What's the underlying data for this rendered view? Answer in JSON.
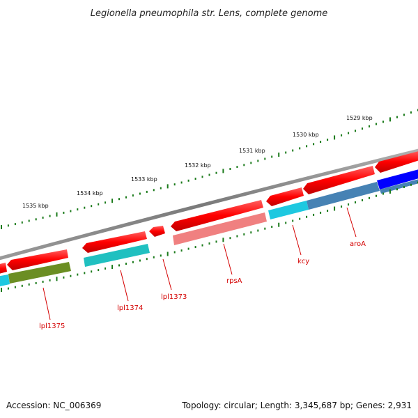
{
  "title": "Legionella pneumophila str. Lens, complete genome",
  "footer": {
    "accession": "Accession: NC_006369",
    "topology": "Topology: circular; Length: 3,345,687 bp; Genes: 2,931"
  },
  "kbp_labels": [
    "1535 kbp",
    "1534 kbp",
    "1533 kbp",
    "1532 kbp",
    "1531 kbp",
    "1530 kbp",
    "1529 kbp"
  ],
  "gene_labels": [
    "lpl1375",
    "lpl1374",
    "lpl1373",
    "rpsA",
    "kcy",
    "aroA"
  ],
  "colors": {
    "backbone": "#808080",
    "cds_forward": "#ff0000",
    "tick": "#1a7a1a",
    "label": "#d40000",
    "cog_cyan": "#1ec8e0",
    "cog_olive": "#6b8e23",
    "cog_teal": "#20c0c0",
    "cog_pink": "#f08080",
    "cog_steel": "#4682b4",
    "cog_blue": "#0000ff"
  }
}
